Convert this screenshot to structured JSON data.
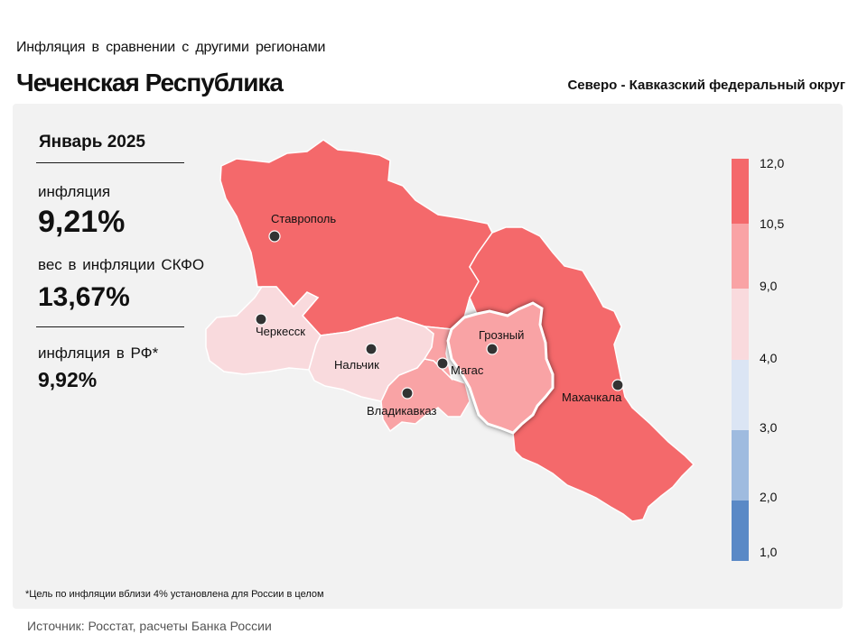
{
  "header": {
    "subtitle": "Инфляция в сравнении с другими регионами",
    "title": "Чеченская Республика",
    "district": "Северо - Кавказский федеральный округ"
  },
  "stats": {
    "period": "Январь 2025",
    "inflation_label": "инфляция",
    "inflation_value": "9,21%",
    "weight_label": "вес в инфляции СКФО",
    "weight_value": "13,67%",
    "rf_label": "инфляция в РФ*",
    "rf_value": "9,92%"
  },
  "cities": {
    "stavropol": "Ставрополь",
    "cherkessk": "Черкесск",
    "nalchik": "Нальчик",
    "vladikavkaz": "Владикавказ",
    "magas": "Магас",
    "grozny": "Грозный",
    "makhachkala": "Махачкала"
  },
  "legend": {
    "ticks": [
      "12,0",
      "10,5",
      "9,0",
      "4,0",
      "3,0",
      "2,0",
      "1,0"
    ],
    "colors": [
      "#f4696b",
      "#f9a3a5",
      "#f9dadd",
      "#dbe5f4",
      "#9fbbdf",
      "#5a89c6"
    ]
  },
  "region_colors": {
    "stavropol_krai": "#f4696b",
    "dagestan": "#f4696b",
    "chechnya": "#f9a3a5",
    "north_ossetia": "#f9a3a5",
    "ingushetia": "#f9a3a5",
    "karachay_cherkessia": "#f9dadd",
    "kabardino_balkaria": "#f9dadd"
  },
  "footnote": "*Цель по инфляции вблизи 4% установлена для России в целом",
  "source": "Источник: Росстат, расчеты Банка России"
}
